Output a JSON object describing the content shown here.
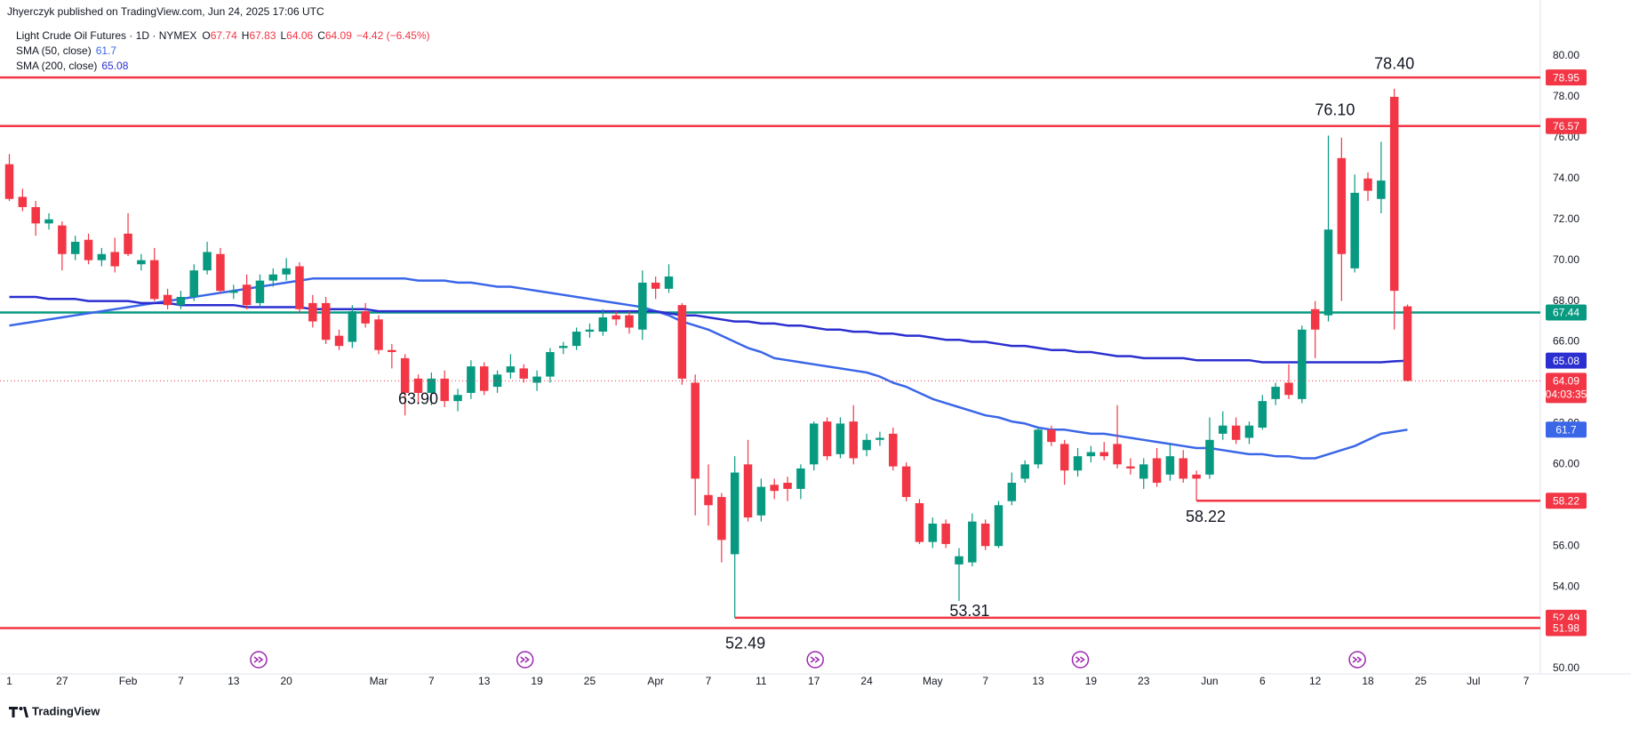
{
  "header": {
    "author": "Jhyerczyk published on TradingView.com, Jun 24, 2025 17:06 UTC",
    "symbol": "Light Crude Oil Futures · 1D · NYMEX",
    "ohlc_labels": [
      "O",
      "H",
      "L",
      "C"
    ],
    "change": "−4.42 (−6.45%)",
    "brand": "TradingView"
  },
  "chart_data": {
    "type": "candlestick",
    "up_color": "#089981",
    "down_color": "#f23645",
    "categories": [
      "1",
      null,
      null,
      null,
      "27",
      null,
      null,
      null,
      null,
      "Feb",
      null,
      null,
      null,
      "7",
      null,
      null,
      null,
      "13",
      null,
      null,
      null,
      "20",
      null,
      null,
      null,
      null,
      null,
      null,
      "Mar",
      null,
      null,
      null,
      "7",
      null,
      null,
      null,
      "13",
      null,
      null,
      null,
      "19",
      null,
      null,
      null,
      "25",
      null,
      null,
      null,
      null,
      "Apr",
      null,
      null,
      null,
      "7",
      null,
      null,
      null,
      "11",
      null,
      null,
      null,
      "17",
      null,
      null,
      null,
      "24",
      null,
      null,
      null,
      null,
      "May",
      null,
      null,
      null,
      "7",
      null,
      null,
      null,
      "13",
      null,
      null,
      null,
      "19",
      null,
      null,
      null,
      "23",
      null,
      null,
      null,
      null,
      "Jun",
      null,
      null,
      null,
      "6",
      null,
      null,
      null,
      "12",
      null,
      null,
      null,
      "18",
      null,
      null,
      null,
      "25",
      null,
      null,
      null,
      "Jul",
      null,
      null,
      null,
      "7"
    ],
    "open": [
      74.7,
      73.1,
      72.6,
      71.8,
      71.7,
      70.3,
      71.0,
      70.0,
      70.4,
      71.3,
      69.8,
      70.0,
      68.3,
      67.8,
      68.2,
      69.5,
      70.3,
      68.4,
      68.8,
      67.9,
      69.0,
      69.3,
      69.7,
      67.9,
      67.9,
      66.3,
      66.0,
      67.5,
      67.1,
      65.6,
      65.2,
      64.2,
      63.5,
      64.2,
      63.1,
      63.5,
      64.8,
      63.8,
      64.5,
      64.7,
      64.0,
      64.3,
      65.7,
      65.8,
      66.5,
      66.5,
      67.3,
      67.3,
      66.6,
      68.9,
      68.6,
      67.8,
      64.0,
      58.5,
      58.4,
      55.6,
      60.0,
      57.5,
      59.0,
      59.1,
      58.8,
      60.0,
      62.1,
      60.5,
      62.1,
      60.7,
      61.2,
      61.5,
      59.9,
      58.1,
      56.2,
      57.1,
      55.1,
      55.2,
      57.1,
      56.0,
      58.2,
      59.3,
      60.0,
      61.7,
      61.0,
      59.7,
      60.4,
      60.6,
      61.0,
      59.9,
      59.3,
      60.3,
      59.5,
      60.3,
      59.5,
      59.5,
      61.5,
      61.9,
      61.3,
      61.8,
      63.2,
      64.0,
      63.2,
      67.6,
      67.3,
      75.0,
      69.6,
      74.0,
      73.0,
      78.0,
      67.74,
      null,
      null,
      null,
      null,
      null,
      null,
      null,
      null,
      null
    ],
    "high": [
      75.2,
      73.5,
      72.9,
      72.3,
      71.9,
      71.2,
      71.3,
      70.6,
      71.1,
      72.3,
      70.3,
      70.6,
      68.6,
      68.5,
      69.8,
      70.9,
      70.6,
      68.8,
      69.3,
      69.3,
      69.6,
      70.1,
      69.9,
      68.3,
      68.2,
      66.6,
      67.8,
      67.9,
      67.3,
      65.9,
      65.4,
      64.4,
      64.5,
      64.6,
      63.7,
      65.1,
      65.0,
      64.6,
      65.4,
      64.9,
      64.6,
      65.7,
      66.0,
      66.7,
      66.9,
      67.6,
      67.5,
      67.5,
      69.5,
      69.2,
      69.8,
      67.9,
      64.4,
      60.0,
      58.6,
      60.4,
      61.2,
      59.3,
      59.3,
      59.4,
      60.0,
      62.1,
      62.3,
      62.3,
      62.9,
      61.5,
      61.6,
      61.8,
      60.1,
      58.3,
      57.4,
      57.3,
      55.9,
      57.6,
      57.3,
      58.2,
      59.6,
      60.2,
      61.8,
      61.9,
      61.2,
      60.8,
      60.9,
      61.1,
      62.9,
      60.3,
      60.3,
      60.8,
      61.0,
      60.7,
      59.7,
      62.3,
      62.6,
      62.3,
      62.1,
      63.4,
      64.0,
      64.9,
      66.8,
      68.0,
      76.1,
      76.0,
      74.2,
      74.3,
      75.8,
      78.4,
      67.83,
      null,
      null,
      null,
      null,
      null,
      null,
      null,
      null,
      null
    ],
    "low": [
      72.9,
      72.4,
      71.2,
      71.5,
      69.5,
      70.0,
      69.8,
      69.7,
      69.4,
      70.2,
      69.5,
      68.0,
      67.6,
      67.6,
      68.0,
      69.3,
      68.4,
      68.1,
      67.6,
      67.7,
      68.7,
      69.0,
      67.4,
      66.7,
      65.9,
      65.6,
      65.7,
      66.7,
      65.4,
      64.7,
      62.4,
      63.0,
      62.9,
      62.8,
      62.6,
      63.2,
      63.4,
      63.5,
      64.2,
      64.0,
      63.6,
      64.0,
      65.4,
      65.6,
      66.2,
      66.3,
      66.8,
      66.4,
      66.1,
      68.1,
      68.4,
      63.9,
      57.5,
      57.0,
      55.2,
      52.49,
      57.2,
      57.2,
      58.3,
      58.2,
      58.3,
      59.7,
      60.2,
      60.3,
      60.0,
      60.4,
      60.9,
      59.7,
      58.2,
      56.1,
      55.9,
      55.9,
      53.31,
      55.0,
      55.8,
      55.9,
      58.0,
      59.1,
      59.8,
      60.9,
      59.0,
      59.4,
      60.1,
      60.2,
      59.8,
      59.5,
      58.8,
      58.9,
      59.2,
      59.1,
      58.22,
      59.3,
      61.2,
      61.0,
      61.0,
      61.7,
      62.9,
      63.2,
      63.0,
      65.2,
      67.0,
      68.0,
      69.4,
      72.9,
      72.3,
      66.6,
      64.06,
      null,
      null,
      null,
      null,
      null,
      null,
      null,
      null,
      null
    ],
    "close": [
      73.0,
      72.6,
      71.8,
      72.0,
      70.3,
      70.9,
      70.0,
      70.3,
      69.7,
      70.3,
      70.0,
      68.1,
      67.8,
      68.2,
      69.5,
      70.4,
      68.5,
      68.5,
      67.8,
      69.0,
      69.3,
      69.6,
      67.6,
      67.0,
      66.1,
      65.8,
      67.5,
      66.9,
      65.6,
      65.5,
      63.5,
      63.5,
      64.2,
      63.1,
      63.4,
      64.8,
      63.6,
      64.4,
      64.8,
      64.2,
      64.3,
      65.5,
      65.8,
      66.5,
      66.6,
      67.2,
      67.1,
      66.7,
      68.9,
      68.6,
      69.2,
      64.2,
      59.3,
      58.0,
      56.3,
      59.6,
      57.4,
      58.9,
      58.7,
      58.8,
      59.8,
      62.0,
      60.4,
      62.0,
      60.3,
      61.2,
      61.3,
      59.9,
      58.4,
      56.2,
      57.1,
      56.1,
      55.5,
      57.2,
      56.0,
      58.0,
      59.1,
      60.0,
      61.7,
      61.1,
      59.7,
      60.4,
      60.6,
      60.4,
      60.0,
      59.8,
      60.0,
      59.1,
      60.4,
      59.3,
      59.3,
      61.2,
      61.9,
      61.2,
      61.9,
      63.1,
      63.8,
      63.4,
      66.6,
      66.6,
      71.5,
      70.3,
      73.3,
      73.4,
      73.9,
      68.5,
      64.09,
      null,
      null,
      null,
      null,
      null,
      null,
      null,
      null,
      null
    ],
    "series": [
      {
        "name": "SMA (50, close)",
        "color": "#3a66e8",
        "values": [
          66.8,
          66.9,
          67.0,
          67.1,
          67.2,
          67.3,
          67.4,
          67.5,
          67.6,
          67.7,
          67.8,
          67.9,
          68.0,
          68.1,
          68.2,
          68.3,
          68.4,
          68.5,
          68.6,
          68.7,
          68.8,
          68.9,
          69.0,
          69.1,
          69.1,
          69.1,
          69.1,
          69.1,
          69.1,
          69.1,
          69.1,
          69.0,
          69.0,
          69.0,
          68.9,
          68.9,
          68.8,
          68.7,
          68.7,
          68.6,
          68.5,
          68.4,
          68.3,
          68.2,
          68.1,
          68.0,
          67.9,
          67.8,
          67.7,
          67.5,
          67.3,
          67.0,
          66.8,
          66.6,
          66.3,
          66.0,
          65.7,
          65.5,
          65.2,
          65.1,
          65.0,
          64.9,
          64.8,
          64.7,
          64.6,
          64.5,
          64.3,
          64.0,
          63.8,
          63.5,
          63.2,
          63.0,
          62.8,
          62.6,
          62.4,
          62.3,
          62.1,
          62.0,
          61.8,
          61.7,
          61.7,
          61.6,
          61.5,
          61.5,
          61.4,
          61.3,
          61.2,
          61.1,
          61.0,
          60.9,
          60.8,
          60.8,
          60.7,
          60.6,
          60.5,
          60.5,
          60.4,
          60.4,
          60.3,
          60.3,
          60.5,
          60.7,
          60.9,
          61.2,
          61.5,
          61.6,
          61.7,
          null,
          null,
          null,
          null,
          null,
          null,
          null,
          null,
          null
        ]
      },
      {
        "name": "SMA (200, close)",
        "color": "#2b2fcf",
        "values": [
          68.2,
          68.2,
          68.2,
          68.1,
          68.1,
          68.1,
          68.0,
          68.0,
          68.0,
          68.0,
          67.9,
          67.9,
          67.9,
          67.8,
          67.8,
          67.8,
          67.8,
          67.8,
          67.7,
          67.7,
          67.7,
          67.7,
          67.7,
          67.6,
          67.6,
          67.6,
          67.6,
          67.6,
          67.5,
          67.5,
          67.5,
          67.5,
          67.5,
          67.5,
          67.5,
          67.5,
          67.5,
          67.5,
          67.5,
          67.5,
          67.5,
          67.5,
          67.5,
          67.5,
          67.5,
          67.5,
          67.5,
          67.5,
          67.5,
          67.5,
          67.4,
          67.3,
          67.3,
          67.2,
          67.1,
          67.0,
          67.0,
          66.9,
          66.9,
          66.8,
          66.8,
          66.7,
          66.6,
          66.6,
          66.5,
          66.5,
          66.4,
          66.4,
          66.3,
          66.3,
          66.2,
          66.1,
          66.1,
          66.0,
          66.0,
          65.9,
          65.8,
          65.8,
          65.7,
          65.6,
          65.6,
          65.5,
          65.5,
          65.4,
          65.3,
          65.3,
          65.2,
          65.2,
          65.2,
          65.2,
          65.1,
          65.1,
          65.1,
          65.1,
          65.1,
          65.0,
          65.0,
          65.0,
          65.0,
          65.0,
          65.0,
          65.0,
          65.0,
          65.0,
          65.0,
          65.05,
          65.08,
          null,
          null,
          null,
          null,
          null,
          null,
          null,
          null,
          null
        ]
      }
    ],
    "levels": [
      {
        "value": 78.95,
        "color": "#f23645"
      },
      {
        "value": 76.57,
        "color": "#f23645"
      },
      {
        "value": 67.44,
        "color": "#089981"
      },
      {
        "value": 58.22,
        "color": "#f23645"
      },
      {
        "value": 52.49,
        "color": "#f23645"
      },
      {
        "value": 51.98,
        "color": "#f23645"
      }
    ],
    "annotations": [
      {
        "value": 78.4,
        "label": "78.40"
      },
      {
        "value": 76.1,
        "label": "76.10"
      },
      {
        "value": 63.9,
        "label": "63.90"
      },
      {
        "value": 52.49,
        "label": "52.49"
      },
      {
        "value": 53.31,
        "label": "53.31"
      },
      {
        "value": 58.22,
        "label": "58.22"
      }
    ],
    "countdown": "04:03:35",
    "ylim": [
      49.74,
      81.61
    ],
    "yticks": [
      {
        "value": 50,
        "label": "50.00"
      },
      {
        "value": 52,
        "label": "52.00"
      },
      {
        "value": 54,
        "label": "54.00"
      },
      {
        "value": 56,
        "label": "56.00"
      },
      {
        "value": 58,
        "label": "58.00"
      },
      {
        "value": 60,
        "label": "60.00"
      },
      {
        "value": 62,
        "label": "62.00"
      },
      {
        "value": 64,
        "label": "64.00"
      },
      {
        "value": 66,
        "label": "66.00"
      },
      {
        "value": 68,
        "label": "68.00"
      },
      {
        "value": 70,
        "label": "70.00"
      },
      {
        "value": 72,
        "label": "72.00"
      },
      {
        "value": 74,
        "label": "74.00"
      },
      {
        "value": 76,
        "label": "76.00"
      },
      {
        "value": 78,
        "label": "78.00"
      },
      {
        "value": 80,
        "label": "80.00"
      }
    ],
    "grid": false
  }
}
